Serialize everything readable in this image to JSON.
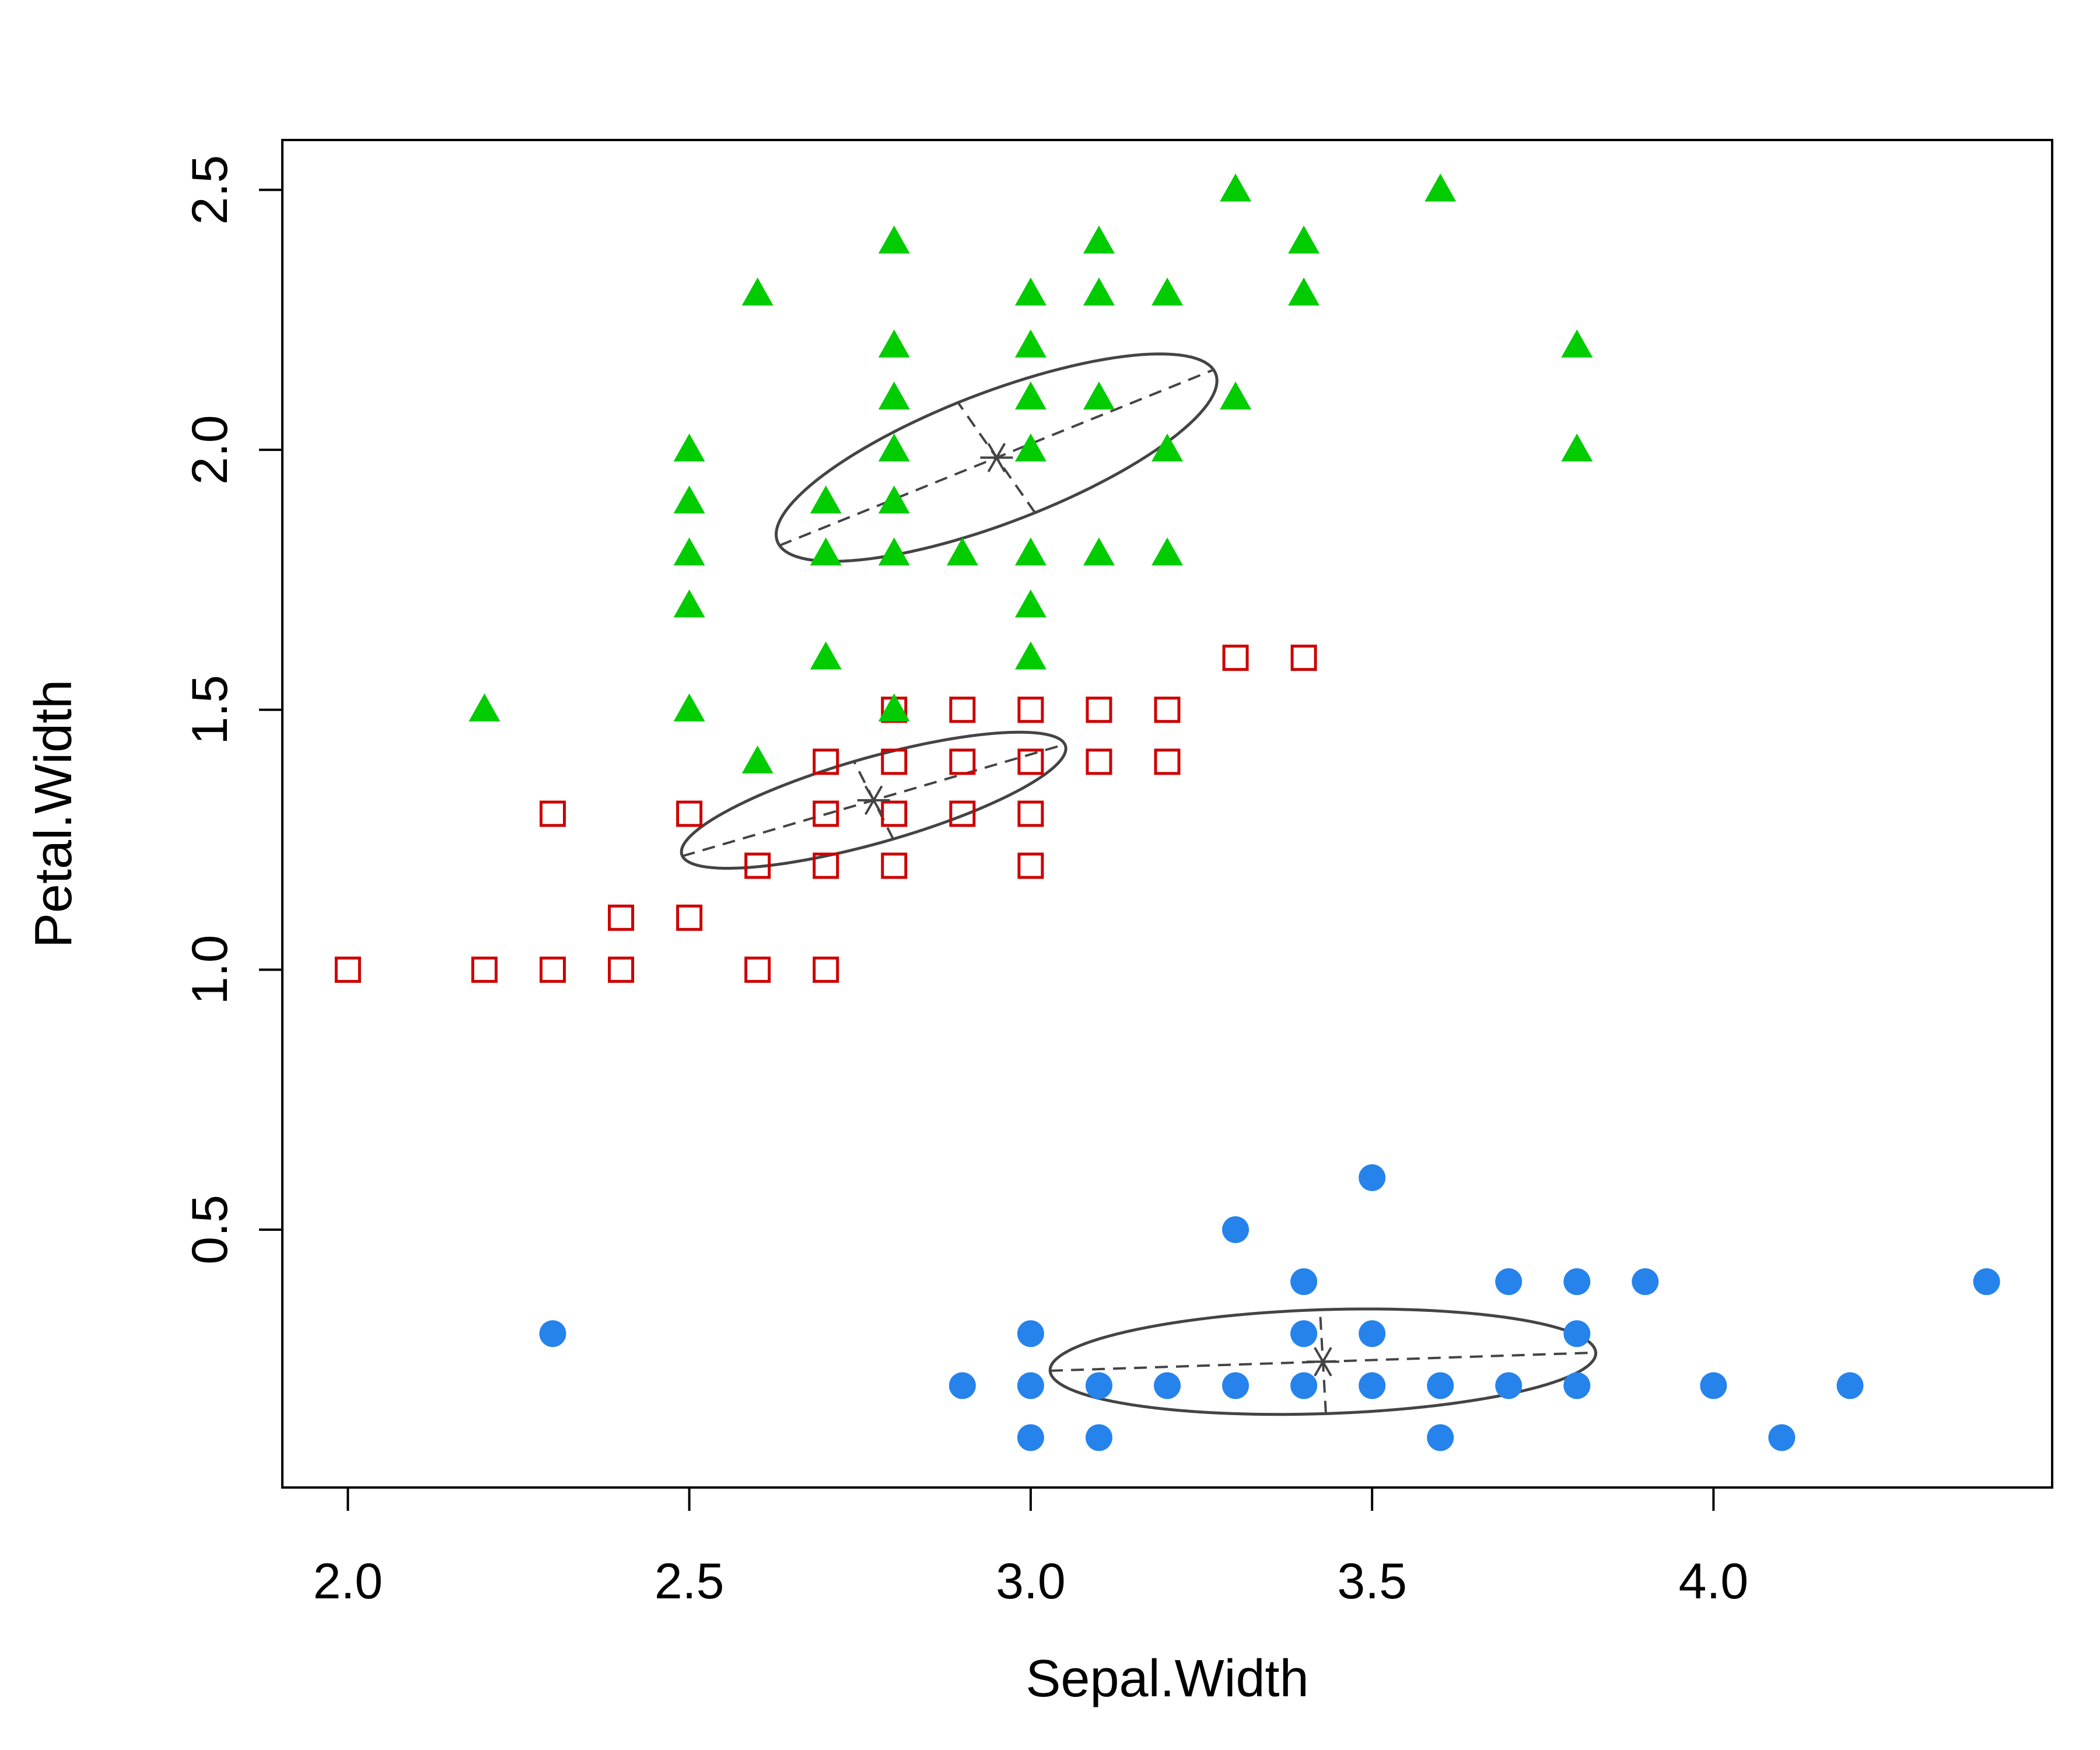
{
  "chart_data": {
    "type": "scatter",
    "title": "",
    "xlabel": "Sepal.Width",
    "ylabel": "Petal.Width",
    "xlim": [
      1.904,
      4.496
    ],
    "ylim": [
      0.004,
      2.596
    ],
    "x_ticks": [
      2.0,
      2.5,
      3.0,
      3.5,
      4.0
    ],
    "x_tick_labels": [
      "2.0",
      "2.5",
      "3.0",
      "3.5",
      "4.0"
    ],
    "y_ticks": [
      0.5,
      1.0,
      1.5,
      2.0,
      2.5
    ],
    "y_tick_labels": [
      "0.5",
      "1.0",
      "1.5",
      "2.0",
      "2.5"
    ],
    "grid": false,
    "legend": "none",
    "series": [
      {
        "marker": "filled-circle",
        "color": "#2683EB",
        "points": [
          [
            2.3,
            0.3
          ],
          [
            2.9,
            0.2
          ],
          [
            3.0,
            0.3
          ],
          [
            3.0,
            0.2
          ],
          [
            3.0,
            0.1
          ],
          [
            3.1,
            0.2
          ],
          [
            3.1,
            0.1
          ],
          [
            3.2,
            0.2
          ],
          [
            3.3,
            0.5
          ],
          [
            3.3,
            0.2
          ],
          [
            3.4,
            0.4
          ],
          [
            3.4,
            0.3
          ],
          [
            3.4,
            0.2
          ],
          [
            3.5,
            0.6
          ],
          [
            3.5,
            0.3
          ],
          [
            3.5,
            0.2
          ],
          [
            3.6,
            0.2
          ],
          [
            3.6,
            0.1
          ],
          [
            3.7,
            0.4
          ],
          [
            3.7,
            0.2
          ],
          [
            3.8,
            0.4
          ],
          [
            3.8,
            0.3
          ],
          [
            3.8,
            0.2
          ],
          [
            3.9,
            0.4
          ],
          [
            4.0,
            0.2
          ],
          [
            4.1,
            0.1
          ],
          [
            4.2,
            0.2
          ],
          [
            4.4,
            0.4
          ]
        ],
        "centroid": [
          3.428,
          0.246
        ],
        "ellipse": {
          "angle_deg": 2.5,
          "a": 0.4,
          "b": 0.1
        }
      },
      {
        "marker": "open-square",
        "color": "#CC0000",
        "points": [
          [
            2.0,
            1.0
          ],
          [
            2.2,
            1.0
          ],
          [
            2.3,
            1.3
          ],
          [
            2.3,
            1.0
          ],
          [
            2.4,
            1.1
          ],
          [
            2.4,
            1.0
          ],
          [
            2.5,
            1.3
          ],
          [
            2.5,
            1.1
          ],
          [
            2.6,
            1.2
          ],
          [
            2.6,
            1.0
          ],
          [
            2.7,
            1.4
          ],
          [
            2.7,
            1.3
          ],
          [
            2.7,
            1.2
          ],
          [
            2.7,
            1.0
          ],
          [
            2.8,
            1.5
          ],
          [
            2.8,
            1.4
          ],
          [
            2.8,
            1.3
          ],
          [
            2.8,
            1.2
          ],
          [
            2.9,
            1.5
          ],
          [
            2.9,
            1.4
          ],
          [
            2.9,
            1.3
          ],
          [
            3.0,
            1.5
          ],
          [
            3.0,
            1.4
          ],
          [
            3.0,
            1.3
          ],
          [
            3.0,
            1.2
          ],
          [
            3.1,
            1.5
          ],
          [
            3.1,
            1.4
          ],
          [
            3.2,
            1.5
          ],
          [
            3.2,
            1.4
          ],
          [
            3.3,
            1.6
          ],
          [
            3.4,
            1.6
          ]
        ],
        "centroid": [
          2.77,
          1.326
        ],
        "ellipse": {
          "angle_deg": 21.0,
          "a": 0.3,
          "b": 0.08
        }
      },
      {
        "marker": "filled-triangle",
        "color": "#00CC00",
        "points": [
          [
            2.2,
            1.5
          ],
          [
            2.5,
            2.0
          ],
          [
            2.5,
            1.9
          ],
          [
            2.5,
            1.8
          ],
          [
            2.5,
            1.7
          ],
          [
            2.5,
            1.5
          ],
          [
            2.6,
            2.3
          ],
          [
            2.6,
            1.4
          ],
          [
            2.7,
            1.9
          ],
          [
            2.7,
            1.8
          ],
          [
            2.7,
            1.6
          ],
          [
            2.8,
            2.4
          ],
          [
            2.8,
            2.2
          ],
          [
            2.8,
            2.1
          ],
          [
            2.8,
            2.0
          ],
          [
            2.8,
            1.9
          ],
          [
            2.8,
            1.8
          ],
          [
            2.8,
            1.5
          ],
          [
            2.9,
            1.8
          ],
          [
            3.0,
            2.3
          ],
          [
            3.0,
            2.2
          ],
          [
            3.0,
            2.1
          ],
          [
            3.0,
            2.0
          ],
          [
            3.0,
            1.8
          ],
          [
            3.0,
            1.7
          ],
          [
            3.0,
            1.6
          ],
          [
            3.1,
            2.4
          ],
          [
            3.1,
            2.3
          ],
          [
            3.1,
            2.1
          ],
          [
            3.1,
            1.8
          ],
          [
            3.2,
            2.3
          ],
          [
            3.2,
            2.0
          ],
          [
            3.2,
            1.8
          ],
          [
            3.3,
            2.5
          ],
          [
            3.3,
            2.1
          ],
          [
            3.4,
            2.4
          ],
          [
            3.4,
            2.3
          ],
          [
            3.6,
            2.5
          ],
          [
            3.8,
            2.2
          ],
          [
            3.8,
            2.0
          ]
        ],
        "centroid": [
          2.95,
          1.985
        ],
        "ellipse": {
          "angle_deg": 28.0,
          "a": 0.36,
          "b": 0.12
        }
      }
    ]
  }
}
